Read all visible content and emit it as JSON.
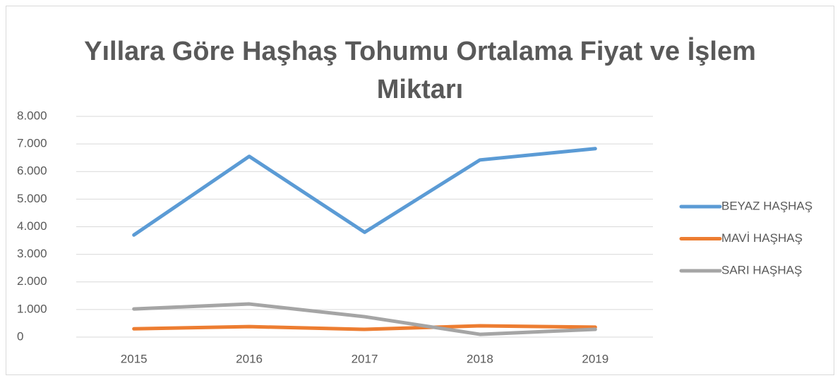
{
  "chart_data": {
    "type": "line",
    "title": "Yıllara Göre Haşhaş Tohumu Ortalama Fiyat ve İşlem Miktarı",
    "categories": [
      "2015",
      "2016",
      "2017",
      "2018",
      "2019"
    ],
    "series": [
      {
        "name": "BEYAZ HAŞHAŞ",
        "color": "#5b9bd5",
        "values": [
          3700,
          6550,
          3800,
          6420,
          6830
        ]
      },
      {
        "name": "MAVİ HAŞHAŞ",
        "color": "#ed7d31",
        "values": [
          300,
          380,
          280,
          410,
          360
        ]
      },
      {
        "name": "SARI HAŞHAŞ",
        "color": "#a5a5a5",
        "values": [
          1020,
          1200,
          740,
          100,
          280
        ]
      }
    ],
    "ylim": [
      0,
      8000
    ],
    "yticks": [
      0,
      {
        "value": 1000,
        "label": "1.000"
      },
      {
        "value": 2000,
        "label": "2.000"
      },
      {
        "value": 3000,
        "label": "3.000"
      },
      {
        "value": 4000,
        "label": "4.000"
      },
      {
        "value": 5000,
        "label": "5.000"
      },
      {
        "value": 6000,
        "label": "6.000"
      },
      {
        "value": 7000,
        "label": "7.000"
      },
      {
        "value": 8000,
        "label": "8.000"
      }
    ],
    "grid": true,
    "legend": "right"
  }
}
